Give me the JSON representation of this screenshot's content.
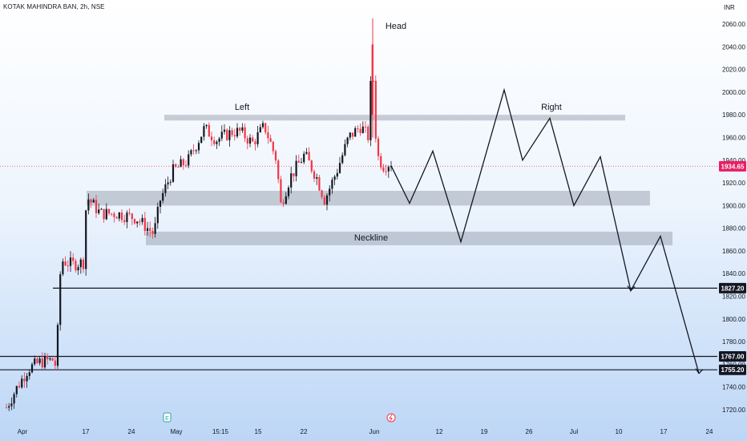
{
  "header": {
    "symbol_title": "KOTAK MAHINDRA BAN, 2h, NSE",
    "currency": "INR"
  },
  "colors": {
    "up": "#131722",
    "down": "#f23645",
    "zone": "#9ea6b4",
    "current_price_badge": "#e91e63",
    "level_badge": "#131722"
  },
  "chart_data": {
    "type": "candlestick",
    "ylim": [
      1712,
      2070
    ],
    "y_ticks": [
      "2060.00",
      "2040.00",
      "2020.00",
      "2000.00",
      "1980.00",
      "1960.00",
      "1940.00",
      "1920.00",
      "1900.00",
      "1880.00",
      "1860.00",
      "1840.00",
      "1820.00",
      "1800.00",
      "1780.00",
      "1760.00",
      "1740.00",
      "1720.00"
    ],
    "x_ticks": [
      "Apr",
      "17",
      "24",
      "May",
      "15:15",
      "15",
      "22",
      "Jun",
      "12",
      "19",
      "26",
      "Jul",
      "10",
      "17",
      "24"
    ],
    "current_price": "1934.65",
    "levels": [
      "1827.20",
      "1767.00",
      "1755.20"
    ],
    "zones": [
      {
        "label": "Left / Right",
        "low": 1975,
        "high": 1980
      },
      {
        "label": "",
        "low": 1900,
        "high": 1913
      },
      {
        "label": "Neckline",
        "low": 1865,
        "high": 1877
      }
    ],
    "annotations": [
      "Left",
      "Head",
      "Right",
      "Neckline"
    ],
    "projection_path": [
      1935,
      1902,
      1948,
      1868,
      2002,
      1940,
      1977,
      1900,
      1943,
      1825,
      1873,
      1752
    ]
  }
}
